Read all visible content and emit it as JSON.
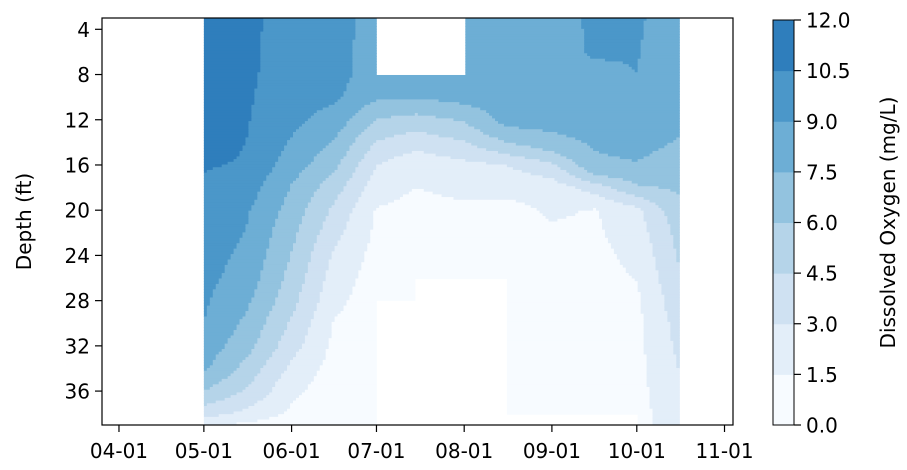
{
  "chart_data": {
    "type": "contour",
    "title": "",
    "xlabel": "",
    "ylabel": "Depth (ft)",
    "x_tick_labels": [
      "04-01",
      "05-01",
      "06-01",
      "07-01",
      "08-01",
      "09-01",
      "10-01",
      "11-01"
    ],
    "y_tick_labels": [
      "4",
      "8",
      "12",
      "16",
      "20",
      "24",
      "28",
      "32",
      "36"
    ],
    "x_range": [
      "2000-03-26",
      "2000-11-04"
    ],
    "y_range": [
      3,
      39
    ],
    "y_inverted": true,
    "colorbar": {
      "label": "Dissolved Oxygen (mg/L)",
      "levels": [
        0.0,
        1.5,
        3.0,
        4.5,
        6.0,
        7.5,
        9.0,
        10.5,
        12.0
      ],
      "tick_labels": [
        "0.0",
        "1.5",
        "3.0",
        "4.5",
        "6.0",
        "7.5",
        "9.0",
        "10.5",
        "12.0"
      ],
      "colors": [
        "#f7fbff",
        "#e3eef9",
        "#cfe1f2",
        "#b5d4e9",
        "#93c3df",
        "#6daed5",
        "#4b97c9",
        "#2f7ebc",
        "#1864aa",
        "#0a4a90"
      ]
    },
    "data_extent_dates": [
      "05-01",
      "10-16"
    ],
    "profiles": [
      {
        "date": "05-01",
        "do_by_depth": {
          "3": 10.8,
          "12": 11.2,
          "20": 10.0,
          "30": 9.0,
          "34": 7.8,
          "36": 6.0,
          "38": 3.6,
          "39": 1.8
        }
      },
      {
        "date": "05-16",
        "do_by_depth": {
          "3": 10.9,
          "8": 10.8,
          "12": 10.6,
          "16": 10.4,
          "20": 9.2,
          "26": 8.4,
          "32": 6.6,
          "36": 4.4,
          "38": 2.6,
          "39": 1.2
        }
      },
      {
        "date": "06-01",
        "do_by_depth": {
          "3": 9.8,
          "8": 9.7,
          "12": 9.4,
          "15": 8.6,
          "18": 7.4,
          "22": 6.4,
          "28": 5.0,
          "32": 3.6,
          "35": 2.2,
          "38": 1.2,
          "39": 0.5
        }
      },
      {
        "date": "06-16",
        "do_by_depth": {
          "3": 9.6,
          "8": 9.6,
          "10": 9.3,
          "12": 8.4,
          "14": 7.4,
          "16": 6.4,
          "18": 5.2,
          "20": 4.2,
          "24": 2.8,
          "30": 1.4,
          "36": 0.7,
          "39": 0.4
        }
      },
      {
        "date": "07-01",
        "do_by_depth": {
          "3": 8.4,
          "8": 8.2,
          "10": 7.8,
          "11": 6.8,
          "12": 6.0,
          "14": 4.4,
          "16": 3.0,
          "20": 1.4,
          "26": 0.8,
          "34": 0.6,
          "39": 0.4
        }
      },
      {
        "date": "07-15",
        "do_by_depth": {
          "8": 8.1,
          "10": 7.6,
          "11": 6.6,
          "12": 5.4,
          "14": 3.6,
          "16": 2.0,
          "20": 1.0,
          "28": 0.6
        }
      },
      {
        "date": "08-01",
        "do_by_depth": {
          "3": 8.2,
          "8": 8.2,
          "10": 8.0,
          "11": 7.2,
          "12": 6.2,
          "14": 4.4,
          "16": 2.6,
          "20": 1.2,
          "26": 0.4
        }
      },
      {
        "date": "08-16",
        "do_by_depth": {
          "3": 8.2,
          "8": 8.2,
          "12": 8.0,
          "13": 7.2,
          "14": 6.0,
          "15": 4.6,
          "16": 3.0,
          "20": 1.0,
          "30": 0.5,
          "39": 0.4
        }
      },
      {
        "date": "09-01",
        "do_by_depth": {
          "3": 8.3,
          "8": 8.3,
          "12": 8.1,
          "14": 7.0,
          "15": 5.8,
          "16": 4.2,
          "18": 2.2,
          "24": 0.8,
          "32": 0.5,
          "38": 0.7
        }
      },
      {
        "date": "09-16",
        "do_by_depth": {
          "3": 9.3,
          "6": 9.2,
          "8": 8.6,
          "12": 8.2,
          "16": 7.2,
          "17": 5.8,
          "18": 3.6,
          "20": 1.4,
          "28": 0.8,
          "34": 0.7,
          "38": 1.0
        }
      },
      {
        "date": "10-01",
        "do_by_depth": {
          "3": 9.2,
          "8": 9.0,
          "12": 8.6,
          "14": 8.0,
          "16": 7.4,
          "18": 5.8,
          "20": 2.6,
          "28": 1.2,
          "36": 1.0,
          "39": 0.9
        }
      },
      {
        "date": "10-16",
        "do_by_depth": {
          "3": 8.2,
          "10": 8.0,
          "14": 7.4,
          "18": 6.2,
          "22": 5.0,
          "26": 4.4,
          "30": 3.6,
          "36": 2.8,
          "39": 2.4
        }
      }
    ]
  }
}
